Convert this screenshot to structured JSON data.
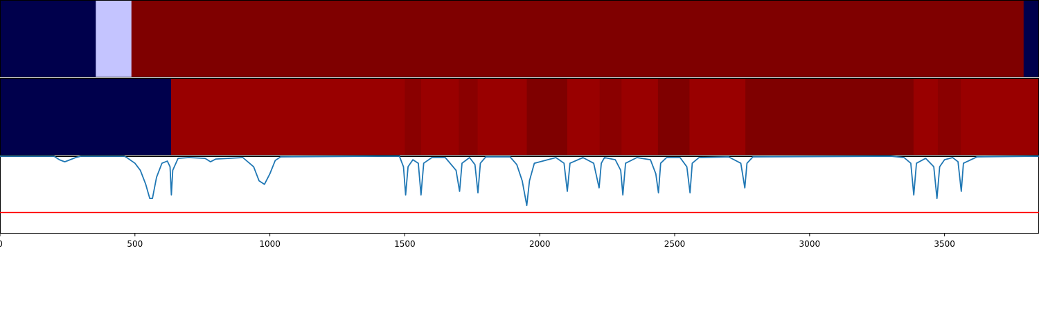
{
  "chart_data": {
    "type": "heatmap",
    "xlim": [
      0,
      3850
    ],
    "x_ticks": [
      {
        "value": 0,
        "label": "0"
      },
      {
        "value": 500,
        "label": "500"
      },
      {
        "value": 1000,
        "label": "1000"
      },
      {
        "value": 1500,
        "label": "1500"
      },
      {
        "value": 2000,
        "label": "2000"
      },
      {
        "value": 2500,
        "label": "2500"
      },
      {
        "value": 3000,
        "label": "3000"
      },
      {
        "value": 3500,
        "label": "3500"
      }
    ],
    "panels": [
      {
        "type": "heatmap",
        "segments": [
          {
            "x_start": 0,
            "x_end": 355,
            "color": "#00004c"
          },
          {
            "x_start": 355,
            "x_end": 487,
            "color": "#c4c4ff"
          },
          {
            "x_start": 487,
            "x_end": 3793,
            "color": "#7f0000"
          },
          {
            "x_start": 3793,
            "x_end": 3850,
            "color": "#00004c"
          }
        ]
      },
      {
        "type": "heatmap",
        "segments": [
          {
            "x_start": 0,
            "x_end": 634,
            "color": "#00004c"
          },
          {
            "x_start": 634,
            "x_end": 1500,
            "color": "#990000"
          },
          {
            "x_start": 1500,
            "x_end": 1560,
            "color": "#8a0000"
          },
          {
            "x_start": 1560,
            "x_end": 1700,
            "color": "#990000"
          },
          {
            "x_start": 1700,
            "x_end": 1770,
            "color": "#8a0000"
          },
          {
            "x_start": 1770,
            "x_end": 1952,
            "color": "#990000"
          },
          {
            "x_start": 1952,
            "x_end": 2102,
            "color": "#7f0000"
          },
          {
            "x_start": 2102,
            "x_end": 2222,
            "color": "#990000"
          },
          {
            "x_start": 2222,
            "x_end": 2303,
            "color": "#8a0000"
          },
          {
            "x_start": 2303,
            "x_end": 2438,
            "color": "#990000"
          },
          {
            "x_start": 2438,
            "x_end": 2555,
            "color": "#7f0000"
          },
          {
            "x_start": 2555,
            "x_end": 2762,
            "color": "#990000"
          },
          {
            "x_start": 2762,
            "x_end": 3385,
            "color": "#7f0000"
          },
          {
            "x_start": 3385,
            "x_end": 3475,
            "color": "#990000"
          },
          {
            "x_start": 3475,
            "x_end": 3560,
            "color": "#8a0000"
          },
          {
            "x_start": 3560,
            "x_end": 3850,
            "color": "#990000"
          }
        ]
      },
      {
        "type": "line",
        "ylim": [
          -1.1,
          0
        ],
        "threshold": -0.8,
        "threshold_color": "#ff0000",
        "series_color": "#1f77b4",
        "series": {
          "x": [
            0,
            200,
            220,
            240,
            260,
            280,
            300,
            460,
            470,
            500,
            520,
            540,
            555,
            565,
            580,
            600,
            620,
            630,
            635,
            640,
            660,
            700,
            760,
            780,
            800,
            900,
            940,
            960,
            980,
            1000,
            1020,
            1040,
            1400,
            1480,
            1495,
            1503,
            1512,
            1530,
            1550,
            1560,
            1570,
            1600,
            1650,
            1690,
            1703,
            1712,
            1740,
            1760,
            1771,
            1780,
            1800,
            1890,
            1915,
            1935,
            1952,
            1962,
            1980,
            2060,
            2090,
            2102,
            2112,
            2160,
            2200,
            2220,
            2228,
            2240,
            2280,
            2300,
            2308,
            2318,
            2360,
            2410,
            2430,
            2440,
            2448,
            2470,
            2520,
            2545,
            2557,
            2565,
            2590,
            2700,
            2745,
            2760,
            2768,
            2790,
            3300,
            3350,
            3375,
            3386,
            3396,
            3430,
            3460,
            3472,
            3482,
            3500,
            3530,
            3550,
            3562,
            3570,
            3620,
            3850
          ],
          "y": [
            0,
            0,
            -0.05,
            -0.08,
            -0.05,
            -0.02,
            0,
            0,
            -0.02,
            -0.1,
            -0.2,
            -0.4,
            -0.6,
            -0.6,
            -0.3,
            -0.1,
            -0.07,
            -0.15,
            -0.55,
            -0.2,
            -0.03,
            -0.02,
            -0.03,
            -0.08,
            -0.04,
            -0.02,
            -0.15,
            -0.35,
            -0.4,
            -0.25,
            -0.06,
            -0.01,
            0,
            0,
            -0.15,
            -0.55,
            -0.15,
            -0.05,
            -0.1,
            -0.55,
            -0.1,
            -0.02,
            -0.02,
            -0.2,
            -0.5,
            -0.1,
            -0.02,
            -0.12,
            -0.52,
            -0.1,
            -0.01,
            -0.01,
            -0.12,
            -0.35,
            -0.7,
            -0.35,
            -0.1,
            -0.02,
            -0.1,
            -0.5,
            -0.1,
            -0.02,
            -0.1,
            -0.45,
            -0.1,
            -0.02,
            -0.05,
            -0.2,
            -0.55,
            -0.1,
            -0.02,
            -0.05,
            -0.25,
            -0.52,
            -0.1,
            -0.02,
            -0.02,
            -0.15,
            -0.52,
            -0.1,
            -0.02,
            -0.01,
            -0.1,
            -0.45,
            -0.1,
            -0.01,
            0,
            -0.02,
            -0.1,
            -0.55,
            -0.1,
            -0.03,
            -0.15,
            -0.6,
            -0.15,
            -0.05,
            -0.02,
            -0.08,
            -0.5,
            -0.1,
            -0.01,
            0
          ]
        }
      }
    ]
  }
}
